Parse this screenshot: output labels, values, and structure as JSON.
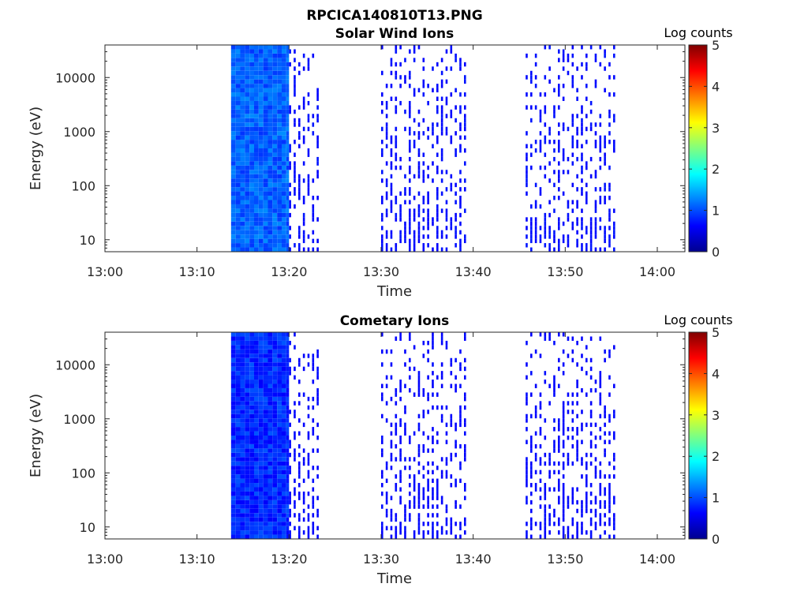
{
  "figure": {
    "title": "RPCICA140810T13.PNG"
  },
  "chart_data": [
    {
      "type": "heatmap",
      "title": "Solar Wind Ions",
      "xlabel": "Time",
      "ylabel": "Energy (eV)",
      "x_ticks": [
        "13:00",
        "13:10",
        "13:20",
        "13:30",
        "13:40",
        "13:50",
        "14:00"
      ],
      "y_ticks": [
        "10",
        "100",
        "1000",
        "10000"
      ],
      "y_scale": "log",
      "xlim": [
        "13:00",
        "14:03"
      ],
      "ylim": [
        6,
        40000
      ],
      "colorbar": {
        "label": "Log counts",
        "ticks": [
          "0",
          "1",
          "2",
          "3",
          "4",
          "5"
        ],
        "range": [
          0,
          5
        ],
        "colormap": "jet"
      },
      "data_blocks": [
        {
          "start": "13:13.7",
          "end": "13:20.0",
          "coverage": "full",
          "level_range": [
            0.3,
            0.8
          ]
        },
        {
          "start": "13:20.0",
          "end": "13:23.5",
          "coverage": "sparse",
          "level_range": [
            0.0,
            0.15
          ]
        },
        {
          "start": "13:30.0",
          "end": "13:39.3",
          "coverage": "sparse",
          "level_range": [
            0.0,
            0.15
          ]
        },
        {
          "start": "13:45.7",
          "end": "13:55.5",
          "coverage": "sparse",
          "level_range": [
            0.0,
            0.15
          ]
        }
      ]
    },
    {
      "type": "heatmap",
      "title": "Cometary Ions",
      "xlabel": "Time",
      "ylabel": "Energy (eV)",
      "x_ticks": [
        "13:00",
        "13:10",
        "13:20",
        "13:30",
        "13:40",
        "13:50",
        "14:00"
      ],
      "y_ticks": [
        "10",
        "100",
        "1000",
        "10000"
      ],
      "y_scale": "log",
      "xlim": [
        "13:00",
        "14:03"
      ],
      "ylim": [
        6,
        40000
      ],
      "colorbar": {
        "label": "Log counts",
        "ticks": [
          "0",
          "1",
          "2",
          "3",
          "4",
          "5"
        ],
        "range": [
          0,
          5
        ],
        "colormap": "jet"
      },
      "data_blocks": [
        {
          "start": "13:13.7",
          "end": "13:20.0",
          "coverage": "full",
          "level_range": [
            0.0,
            0.5
          ]
        },
        {
          "start": "13:20.0",
          "end": "13:23.5",
          "coverage": "sparse",
          "level_range": [
            0.0,
            0.1
          ]
        },
        {
          "start": "13:30.0",
          "end": "13:39.3",
          "coverage": "sparse",
          "level_range": [
            0.0,
            0.1
          ]
        },
        {
          "start": "13:45.7",
          "end": "13:55.5",
          "coverage": "sparse",
          "level_range": [
            0.0,
            0.1
          ]
        }
      ]
    }
  ]
}
